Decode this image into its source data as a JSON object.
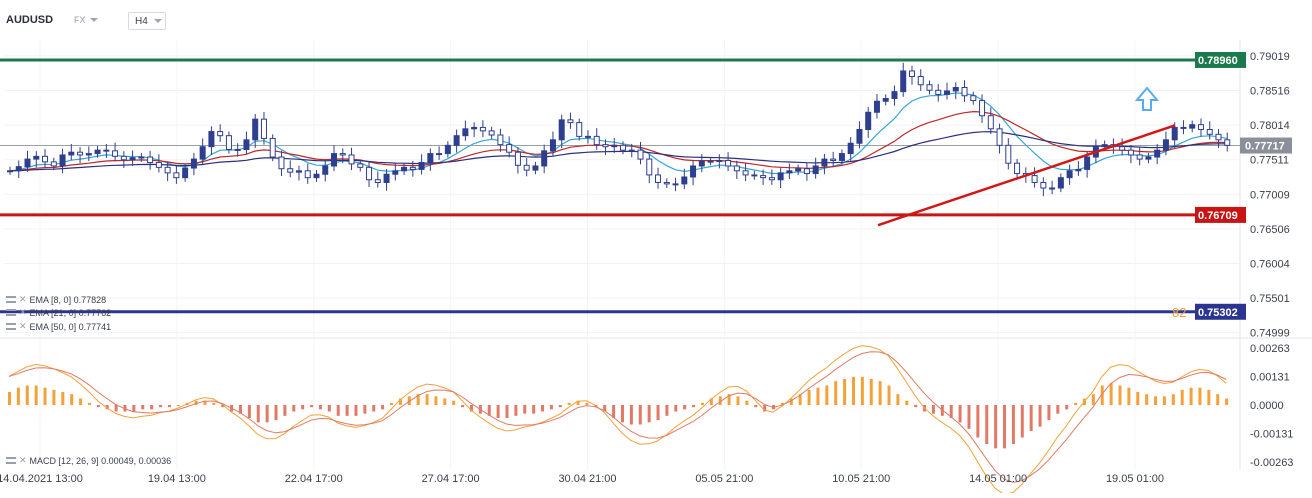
{
  "toolbar": {
    "symbol": "AUDUSD",
    "market": "FX",
    "timeframe": "H4"
  },
  "colors": {
    "up_candle": "#2e3f8f",
    "down_candle_fill": "#ffffff",
    "resistance": "#1b7a4d",
    "support": "#c81414",
    "lower_level": "#2b3590",
    "trendline": "#d01818",
    "ema8": "#34a7d8",
    "ema21": "#c22626",
    "ema50": "#2d2f7a",
    "macd_pos": "#f4a13a",
    "macd_neg": "#e07a66",
    "macd_line": "#f4a13a",
    "signal_line": "#e07a66",
    "arrow": "#5aaaf0",
    "current_price_label": "#8a8f99"
  },
  "arrow_icon": "up-arrow-icon",
  "legend": {
    "ema8": "EMA [8, 0] 0.77828",
    "ema21": "EMA [21, 0] 0.77762",
    "ema50": "EMA [50, 0] 0.77741",
    "macd": "MACD [12, 26, 9] 0.00049, 0.00036"
  },
  "lower_level_tag": "82",
  "chart_data": [
    {
      "type": "candlestick",
      "title": "",
      "ylim": [
        0.7495,
        0.7925
      ],
      "price_ticks": [
        "0.79019",
        "0.78516",
        "0.78014",
        "0.77511",
        "0.77009",
        "0.76506",
        "0.76004",
        "0.75501",
        "0.74999"
      ],
      "x_ticks": [
        "14.04.2021 13:00",
        "19.04 13:00",
        "22.04 17:00",
        "27.04 17:00",
        "30.04 21:00",
        "05.05 21:00",
        "10.05 21:00",
        "14.05 01:00",
        "19.05 01:00"
      ],
      "current_price": "0.77717",
      "horizontal_levels": [
        {
          "name": "resistance",
          "value": 0.7896,
          "label": "0.78960"
        },
        {
          "name": "support",
          "value": 0.76709,
          "label": "0.76709"
        },
        {
          "name": "lower",
          "value": 0.75302,
          "label": "0.75302"
        }
      ],
      "trendline": {
        "from": [
          "11.05",
          0.7656
        ],
        "to": [
          "19.05",
          0.7801
        ]
      },
      "close_series": [
        0.7735,
        0.7741,
        0.7752,
        0.7756,
        0.7748,
        0.7742,
        0.7758,
        0.7762,
        0.7758,
        0.776,
        0.7765,
        0.7764,
        0.7756,
        0.7751,
        0.7754,
        0.7755,
        0.7747,
        0.774,
        0.7732,
        0.7725,
        0.7739,
        0.7752,
        0.777,
        0.7792,
        0.7786,
        0.7766,
        0.7766,
        0.778,
        0.781,
        0.7782,
        0.7755,
        0.7738,
        0.7733,
        0.7735,
        0.7725,
        0.773,
        0.7742,
        0.776,
        0.7758,
        0.7745,
        0.774,
        0.7722,
        0.7718,
        0.773,
        0.7735,
        0.774,
        0.7737,
        0.7747,
        0.776,
        0.776,
        0.7772,
        0.7786,
        0.7796,
        0.7798,
        0.7793,
        0.7787,
        0.7773,
        0.7762,
        0.7743,
        0.7736,
        0.7742,
        0.7764,
        0.778,
        0.7809,
        0.7805,
        0.7785,
        0.7785,
        0.7773,
        0.777,
        0.7772,
        0.7765,
        0.7765,
        0.7752,
        0.7729,
        0.7718,
        0.7716,
        0.7716,
        0.7726,
        0.7742,
        0.7749,
        0.7749,
        0.775,
        0.7742,
        0.7735,
        0.7729,
        0.7728,
        0.7725,
        0.7722,
        0.7732,
        0.7735,
        0.7738,
        0.7731,
        0.7742,
        0.7752,
        0.775,
        0.776,
        0.7775,
        0.7795,
        0.782,
        0.7836,
        0.784,
        0.785,
        0.788,
        0.7872,
        0.786,
        0.7852,
        0.7846,
        0.7851,
        0.7856,
        0.7844,
        0.7837,
        0.7815,
        0.7796,
        0.7772,
        0.7746,
        0.7731,
        0.7728,
        0.7718,
        0.771,
        0.771,
        0.7725,
        0.7735,
        0.7737,
        0.7755,
        0.777,
        0.7773,
        0.777,
        0.7765,
        0.7758,
        0.7752,
        0.7755,
        0.7765,
        0.778,
        0.7798,
        0.7797,
        0.7802,
        0.7795,
        0.7788,
        0.778,
        0.7772
      ]
    },
    {
      "type": "bar",
      "title": "",
      "ylim": [
        -0.003,
        0.003
      ],
      "y_ticks": [
        "0.00263",
        "0.00131",
        "0.0000",
        "-0.00131",
        "-0.00263"
      ],
      "macd_histogram": [
        0.0006,
        0.0008,
        0.0009,
        0.0009,
        0.0008,
        0.0007,
        0.0006,
        0.0005,
        0.0003,
        0.0001,
        -0.0001,
        -0.0002,
        -0.0003,
        -0.0003,
        -0.0003,
        -0.0002,
        -0.0002,
        -0.0001,
        -0.0001,
        0.0,
        0.0001,
        0.0002,
        0.0002,
        0.0001,
        -0.0001,
        -0.0003,
        -0.0004,
        -0.0006,
        -0.0008,
        -0.0008,
        -0.0007,
        -0.0005,
        -0.0003,
        -0.0002,
        -0.0001,
        -0.0002,
        -0.0003,
        -0.0005,
        -0.0005,
        -0.0005,
        -0.0004,
        -0.0003,
        -0.0002,
        0.0001,
        0.0003,
        0.0004,
        0.0005,
        0.0005,
        0.0004,
        0.0003,
        0.0002,
        -0.0001,
        -0.0003,
        -0.0004,
        -0.0005,
        -0.0006,
        -0.0006,
        -0.0005,
        -0.0004,
        -0.0004,
        -0.0003,
        -0.0002,
        -0.0001,
        0.0001,
        0.0002,
        0.0001,
        -0.0001,
        -0.0003,
        -0.0006,
        -0.0008,
        -0.0009,
        -0.0009,
        -0.0008,
        -0.0007,
        -0.0005,
        -0.0003,
        -0.0002,
        -0.0001,
        0.0001,
        0.0003,
        0.0004,
        0.0005,
        0.0004,
        0.0002,
        -0.0001,
        -0.0003,
        -0.0002,
        0.0001,
        0.0003,
        0.0005,
        0.0007,
        0.0008,
        0.0009,
        0.0011,
        0.0012,
        0.0013,
        0.0013,
        0.0012,
        0.0011,
        0.0009,
        0.0005,
        0.0002,
        -0.0001,
        -0.0003,
        -0.0004,
        -0.0005,
        -0.0006,
        -0.0008,
        -0.0011,
        -0.0015,
        -0.0018,
        -0.002,
        -0.002,
        -0.0018,
        -0.0015,
        -0.0012,
        -0.001,
        -0.0007,
        -0.0004,
        -0.0002,
        0.0001,
        0.0003,
        0.0005,
        0.0009,
        0.001,
        0.0009,
        0.0008,
        0.0006,
        0.0005,
        0.0004,
        0.0004,
        0.0005,
        0.0007,
        0.0008,
        0.0008,
        0.0007,
        0.0005,
        0.0003
      ]
    }
  ]
}
